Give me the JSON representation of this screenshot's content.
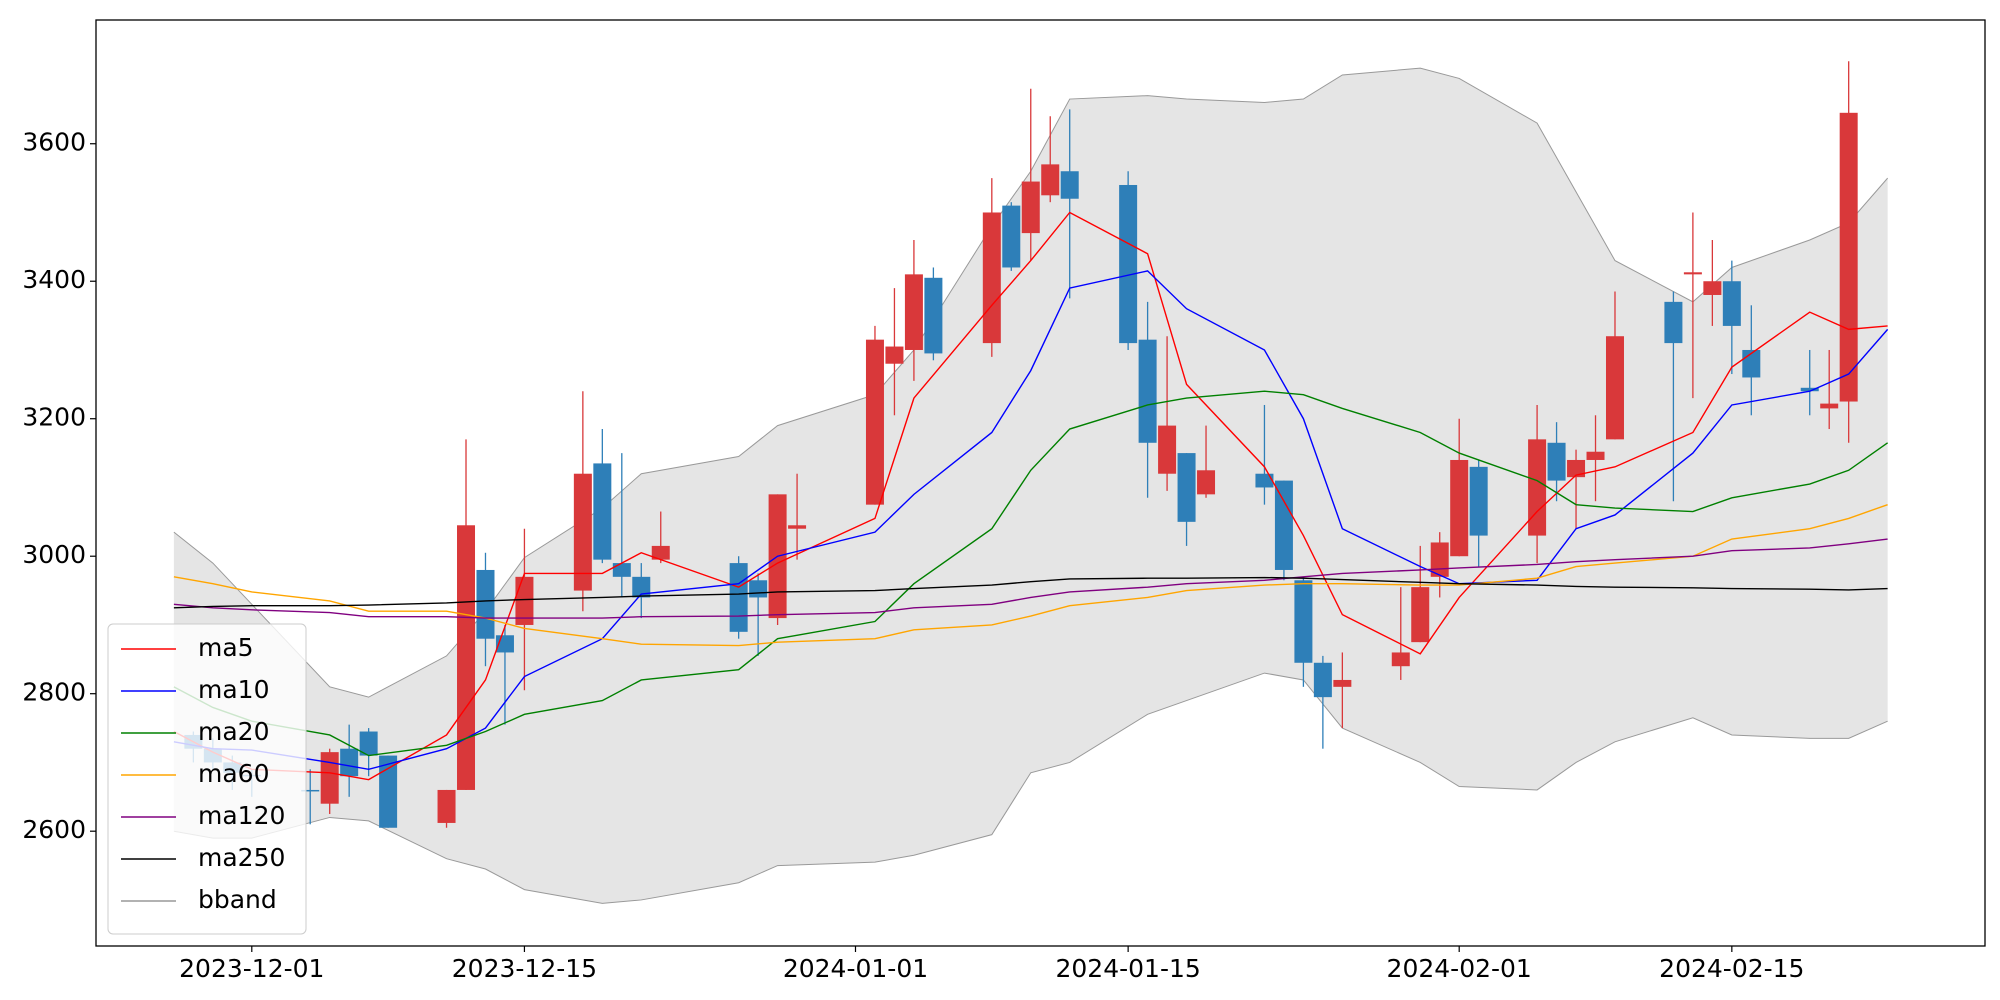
{
  "chart_data": {
    "type": "candlestick",
    "xlim": [
      "2023-11-23",
      "2024-02-28"
    ],
    "ylim": [
      2433,
      3780
    ],
    "xticks": [
      "2023-12-01",
      "2023-12-15",
      "2024-01-01",
      "2024-01-15",
      "2024-02-01",
      "2024-02-15"
    ],
    "yticks": [
      2600,
      2800,
      3000,
      3200,
      3400,
      3600
    ],
    "legend": "lower left",
    "candles": {
      "up_color": "#d9383a",
      "down_color": "#2e7fb8",
      "x": [
        "2023-11-28",
        "2023-11-29",
        "2023-11-30",
        "2023-12-01",
        "2023-12-04",
        "2023-12-05",
        "2023-12-06",
        "2023-12-07",
        "2023-12-08",
        "2023-12-11",
        "2023-12-12",
        "2023-12-13",
        "2023-12-14",
        "2023-12-15",
        "2023-12-18",
        "2023-12-19",
        "2023-12-20",
        "2023-12-21",
        "2023-12-22",
        "2023-12-26",
        "2023-12-27",
        "2023-12-28",
        "2023-12-29",
        "2024-01-02",
        "2024-01-03",
        "2024-01-04",
        "2024-01-05",
        "2024-01-08",
        "2024-01-09",
        "2024-01-10",
        "2024-01-11",
        "2024-01-12",
        "2024-01-15",
        "2024-01-16",
        "2024-01-17",
        "2024-01-18",
        "2024-01-19",
        "2024-01-22",
        "2024-01-23",
        "2024-01-24",
        "2024-01-25",
        "2024-01-26",
        "2024-01-29",
        "2024-01-30",
        "2024-01-31",
        "2024-02-01",
        "2024-02-02",
        "2024-02-05",
        "2024-02-06",
        "2024-02-07",
        "2024-02-08",
        "2024-02-09",
        "2024-02-12",
        "2024-02-13",
        "2024-02-14",
        "2024-02-15",
        "2024-02-16",
        "2024-02-19",
        "2024-02-20",
        "2024-02-21"
      ],
      "open": [
        2740,
        2720,
        2700,
        2682,
        2660,
        2640,
        2720,
        2745,
        2710,
        2612,
        2660,
        2980,
        2885,
        2900,
        2950,
        3135,
        2990,
        2970,
        2995,
        2990,
        2965,
        2910,
        3040,
        3075,
        3280,
        3300,
        3405,
        3310,
        3510,
        3470,
        3525,
        3560,
        3540,
        3315,
        3120,
        3150,
        3090,
        3120,
        3110,
        2965,
        2845,
        2810,
        2840,
        2875,
        2970,
        3000,
        3130,
        3030,
        3165,
        3115,
        3140,
        3170,
        3370,
        3410,
        3380,
        3400,
        3300,
        3245,
        3215,
        3225
      ],
      "high": [
        2745,
        2735,
        2710,
        2690,
        2690,
        2720,
        2755,
        2750,
        2710,
        2660,
        3170,
        3005,
        2900,
        3040,
        3240,
        3185,
        3150,
        2990,
        3065,
        3000,
        2975,
        3090,
        3120,
        3335,
        3390,
        3460,
        3420,
        3550,
        3515,
        3680,
        3640,
        3650,
        3560,
        3370,
        3320,
        3150,
        3190,
        3220,
        3110,
        2970,
        2855,
        2860,
        2955,
        3015,
        3035,
        3200,
        3140,
        3220,
        3195,
        3155,
        3205,
        3385,
        3385,
        3500,
        3460,
        3430,
        3365,
        3300,
        3300,
        3720
      ],
      "low": [
        2700,
        2690,
        2660,
        2650,
        2610,
        2625,
        2650,
        2680,
        2605,
        2605,
        2660,
        2840,
        2755,
        2805,
        2920,
        2990,
        2940,
        2910,
        2990,
        2880,
        2855,
        2900,
        2995,
        3075,
        3205,
        3255,
        3285,
        3290,
        3415,
        3430,
        3515,
        3375,
        3300,
        3085,
        3095,
        3015,
        3085,
        3075,
        2965,
        2810,
        2720,
        2750,
        2820,
        2875,
        2940,
        3000,
        2985,
        2990,
        3080,
        3040,
        3080,
        3170,
        3080,
        3230,
        3335,
        3265,
        3205,
        3205,
        3185,
        3165
      ],
      "close": [
        2720,
        2700,
        2685,
        2680,
        2658,
        2715,
        2680,
        2710,
        2605,
        2660,
        3045,
        2880,
        2860,
        2970,
        3120,
        2995,
        2970,
        2940,
        3015,
        2890,
        2940,
        3090,
        3045,
        3315,
        3305,
        3410,
        3295,
        3500,
        3420,
        3545,
        3570,
        3520,
        3310,
        3165,
        3190,
        3050,
        3125,
        3100,
        2980,
        2845,
        2795,
        2820,
        2860,
        2955,
        3020,
        3140,
        3030,
        3170,
        3110,
        3140,
        3152,
        3320,
        3310,
        3413,
        3400,
        3335,
        3260,
        3240,
        3222,
        3645
      ]
    },
    "line_x": [
      "2023-11-27",
      "2023-11-29",
      "2023-12-01",
      "2023-12-05",
      "2023-12-07",
      "2023-12-11",
      "2023-12-13",
      "2023-12-15",
      "2023-12-19",
      "2023-12-21",
      "2023-12-26",
      "2023-12-28",
      "2024-01-02",
      "2024-01-04",
      "2024-01-08",
      "2024-01-10",
      "2024-01-12",
      "2024-01-16",
      "2024-01-18",
      "2024-01-22",
      "2024-01-24",
      "2024-01-26",
      "2024-01-30",
      "2024-02-01",
      "2024-02-05",
      "2024-02-07",
      "2024-02-09",
      "2024-02-13",
      "2024-02-15",
      "2024-02-19",
      "2024-02-21",
      "2024-02-23"
    ],
    "series": [
      {
        "name": "ma5",
        "color": "#ff0000",
        "values": [
          2745,
          2715,
          2690,
          2685,
          2675,
          2740,
          2820,
          2975,
          2975,
          3005,
          2955,
          2990,
          3055,
          3230,
          3365,
          3430,
          3500,
          3440,
          3250,
          3130,
          3030,
          2915,
          2858,
          2940,
          3065,
          3118,
          3130,
          3180,
          3275,
          3355,
          3330,
          3335
        ]
      },
      {
        "name": "ma10",
        "color": "#0000ff",
        "values": [
          2730,
          2720,
          2718,
          2700,
          2690,
          2720,
          2750,
          2825,
          2880,
          2945,
          2960,
          3000,
          3035,
          3090,
          3180,
          3270,
          3390,
          3415,
          3360,
          3300,
          3200,
          3040,
          2985,
          2960,
          2965,
          3040,
          3060,
          3150,
          3220,
          3240,
          3265,
          3330
        ]
      },
      {
        "name": "ma20",
        "color": "#008000",
        "values": [
          2810,
          2780,
          2760,
          2740,
          2710,
          2725,
          2745,
          2770,
          2790,
          2820,
          2835,
          2880,
          2905,
          2960,
          3040,
          3125,
          3185,
          3220,
          3230,
          3240,
          3235,
          3215,
          3180,
          3150,
          3110,
          3075,
          3070,
          3065,
          3085,
          3105,
          3125,
          3165
        ]
      },
      {
        "name": "ma60",
        "color": "#ffa500",
        "values": [
          2970,
          2960,
          2948,
          2935,
          2920,
          2920,
          2910,
          2895,
          2880,
          2872,
          2870,
          2875,
          2880,
          2893,
          2900,
          2913,
          2928,
          2940,
          2950,
          2958,
          2960,
          2960,
          2958,
          2958,
          2968,
          2985,
          2990,
          3000,
          3025,
          3040,
          3055,
          3075
        ]
      },
      {
        "name": "ma120",
        "color": "#800080",
        "values": [
          2930,
          2925,
          2922,
          2918,
          2912,
          2912,
          2910,
          2910,
          2910,
          2912,
          2913,
          2915,
          2918,
          2925,
          2930,
          2940,
          2948,
          2955,
          2960,
          2965,
          2970,
          2975,
          2980,
          2983,
          2988,
          2992,
          2995,
          3000,
          3008,
          3012,
          3018,
          3025
        ]
      },
      {
        "name": "ma250",
        "color": "#000000",
        "values": [
          2925,
          2927,
          2928,
          2928,
          2929,
          2932,
          2935,
          2937,
          2940,
          2942,
          2945,
          2948,
          2950,
          2953,
          2958,
          2963,
          2967,
          2968,
          2968,
          2969,
          2968,
          2966,
          2962,
          2960,
          2958,
          2956,
          2955,
          2954,
          2953,
          2952,
          2951,
          2953
        ]
      }
    ],
    "bband": {
      "name": "bband",
      "color": "#999999",
      "fill": "#e5e5e5",
      "upper": [
        3035,
        2990,
        2930,
        2810,
        2795,
        2855,
        2920,
        2998,
        3070,
        3120,
        3145,
        3190,
        3235,
        3300,
        3480,
        3560,
        3665,
        3670,
        3665,
        3660,
        3665,
        3700,
        3710,
        3695,
        3630,
        3530,
        3430,
        3370,
        3420,
        3460,
        3485,
        3550
      ],
      "lower": [
        2600,
        2590,
        2590,
        2620,
        2615,
        2560,
        2545,
        2515,
        2495,
        2500,
        2525,
        2550,
        2555,
        2565,
        2595,
        2685,
        2700,
        2770,
        2790,
        2830,
        2820,
        2750,
        2700,
        2665,
        2660,
        2700,
        2730,
        2765,
        2740,
        2735,
        2735,
        2760
      ]
    }
  }
}
